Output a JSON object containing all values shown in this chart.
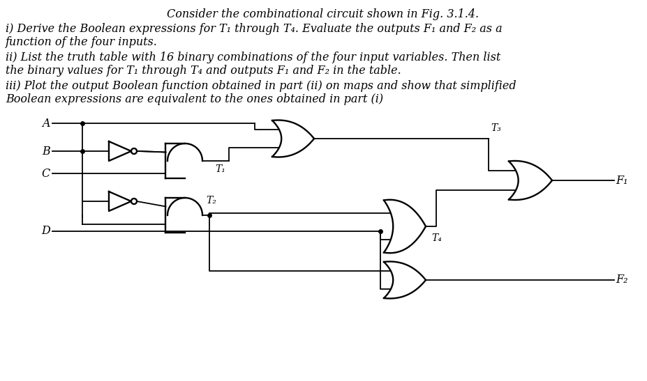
{
  "title": "Consider the combinational circuit shown in Fig. 3.1.4.",
  "lines": [
    "i) Derive the Boolean expressions for T₁ through T₄. Evaluate the outputs F₁ and F₂ as a",
    "function of the four inputs.",
    "ii) List the truth table with 16 binary combinations of the four input variables. Then list",
    "the binary values for T₁ through T₄ and outputs F₁ and F₂ in the table.",
    "iii) Plot the output Boolean function obtained in part (ii) on maps and show that simplified",
    "Boolean expressions are equivalent to the ones obtained in part (i)"
  ],
  "bg_color": "#ffffff",
  "lw_wire": 1.3,
  "lw_gate": 1.7,
  "title_fs": 11.5,
  "body_fs": 11.5
}
